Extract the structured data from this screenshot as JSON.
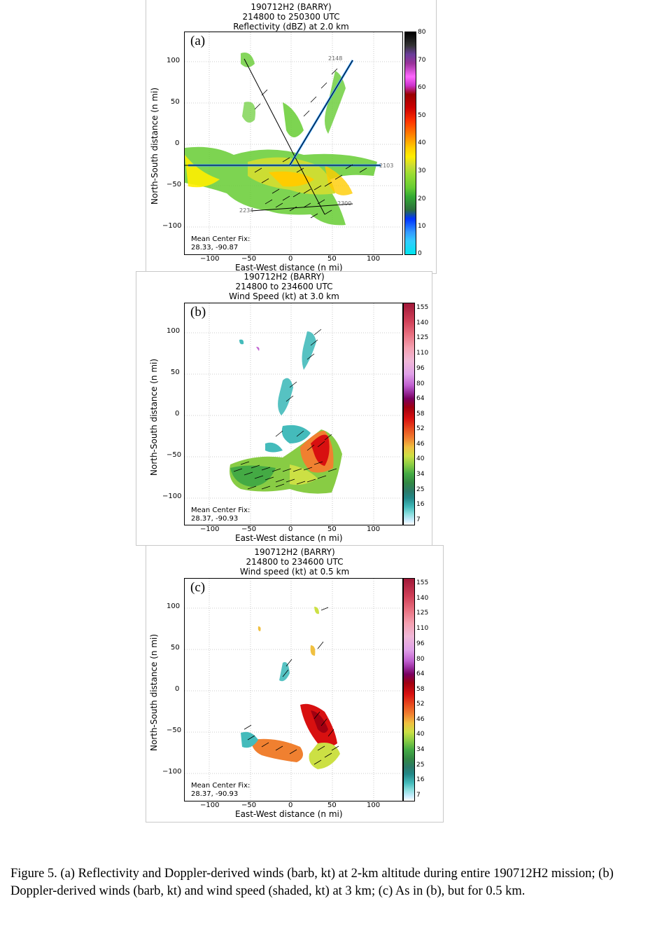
{
  "panels": [
    {
      "letter": "(a)",
      "title_lines": [
        "190712H2 (BARRY)",
        "214800 to 250300 UTC",
        "Reflectivity (dBZ) at 2.0 km"
      ],
      "ylabel": "North-South distance (n mi)",
      "xlabel": "East-West distance (n mi)",
      "yticks": [
        "100",
        "50",
        "0",
        "−50",
        "−100"
      ],
      "xticks": [
        "−100",
        "−50",
        "0",
        "50",
        "100"
      ],
      "fix_label": "Mean Center Fix:",
      "fix_value": "28.33, -90.87",
      "track_labels": [
        "2148",
        "2103",
        "2234",
        "2300"
      ],
      "colorbar_ticks": [
        "80",
        "70",
        "60",
        "50",
        "40",
        "30",
        "20",
        "10",
        "0"
      ]
    },
    {
      "letter": "(b)",
      "title_lines": [
        "190712H2 (BARRY)",
        "214800 to 234600 UTC",
        "Wind Speed (kt) at 3.0 km"
      ],
      "ylabel": "North-South distance (n mi)",
      "xlabel": "East-West distance (n mi)",
      "yticks": [
        "100",
        "50",
        "0",
        "−50",
        "−100"
      ],
      "xticks": [
        "−100",
        "−50",
        "0",
        "50",
        "100"
      ],
      "fix_label": "Mean Center Fix:",
      "fix_value": "28.37, -90.93",
      "colorbar_ticks": [
        "155",
        "140",
        "125",
        "110",
        "96",
        "80",
        "64",
        "58",
        "52",
        "46",
        "40",
        "34",
        "25",
        "16",
        "7"
      ]
    },
    {
      "letter": "(c)",
      "title_lines": [
        "190712H2 (BARRY)",
        "214800 to 234600 UTC",
        "Wind speed (kt) at 0.5 km"
      ],
      "ylabel": "North-South distance (n mi)",
      "xlabel": "East-West distance (n mi)",
      "yticks": [
        "100",
        "50",
        "0",
        "−50",
        "−100"
      ],
      "xticks": [
        "−100",
        "−50",
        "0",
        "50",
        "100"
      ],
      "fix_label": "Mean Center Fix:",
      "fix_value": "28.37, -90.93",
      "colorbar_ticks": [
        "155",
        "140",
        "125",
        "110",
        "96",
        "80",
        "64",
        "58",
        "52",
        "46",
        "40",
        "34",
        "25",
        "16",
        "7"
      ]
    }
  ],
  "colors": {
    "reflectivity_scale": [
      "#00e5ee",
      "#33ccff",
      "#3399ff",
      "#0033ff",
      "#2c6e3c",
      "#33aa33",
      "#66cc33",
      "#99dd33",
      "#ccdd33",
      "#ffee00",
      "#ffcc00",
      "#ff9900",
      "#ff6600",
      "#ff3300",
      "#cc0000",
      "#990000",
      "#cc33cc",
      "#ff66ff",
      "#993399",
      "#6a3d9a",
      "#333333",
      "#000000"
    ],
    "wind_scale": [
      "#ffffff",
      "#cceeff",
      "#88dddd",
      "#44bbbb",
      "#228888",
      "#2a7a6a",
      "#338844",
      "#44aa44",
      "#88cc44",
      "#cce044",
      "#f0c040",
      "#f08030",
      "#e85020",
      "#d81010",
      "#a00010",
      "#7a0060",
      "#9b2fa0",
      "#c060d0",
      "#e0a0e8",
      "#f0b8d8",
      "#f4a0b0",
      "#e87080",
      "#d04058",
      "#a01838"
    ]
  },
  "caption": "Figure 5. (a) Reflectivity  and Doppler-derived winds (barb, kt) at 2-km altitude during entire 190712H2  mission; (b) Doppler-derived winds (barb, kt) and wind speed (shaded, kt) at 3 km; (c) As in (b), but for 0.5 km."
}
